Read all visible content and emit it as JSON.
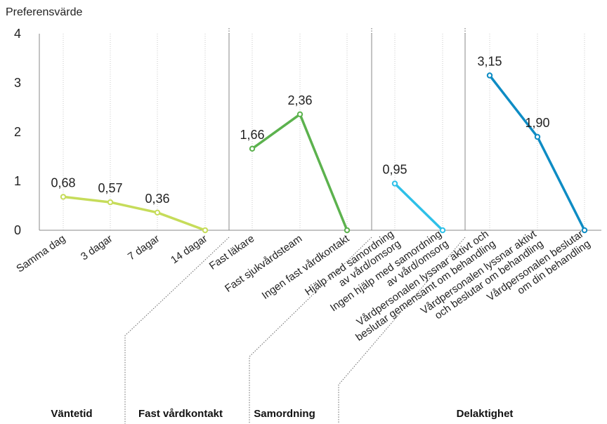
{
  "chart_data": {
    "type": "line",
    "ylabel": "Preferensvärde",
    "ylim": [
      0,
      4
    ],
    "yticks": [
      "0",
      "1",
      "2",
      "3",
      "4"
    ],
    "grid": true,
    "groups": [
      {
        "name": "Väntetid",
        "color": "#c6dc5a",
        "categories": [
          [
            "Samma dag"
          ],
          [
            "3 dagar"
          ],
          [
            "7 dagar"
          ],
          [
            "14 dagar"
          ]
        ],
        "values": [
          0.68,
          0.57,
          0.36,
          0
        ],
        "labels": [
          "0,68",
          "0,57",
          "0,36",
          ""
        ]
      },
      {
        "name": "Fast vårdkontakt",
        "color": "#5cb24e",
        "categories": [
          [
            "Fast läkare"
          ],
          [
            "Fast sjukvårdsteam"
          ],
          [
            "Ingen fast vårdkontakt"
          ]
        ],
        "values": [
          1.66,
          2.36,
          0
        ],
        "labels": [
          "1,66",
          "2,36",
          ""
        ]
      },
      {
        "name": "Samordning",
        "color": "#2ec0e8",
        "categories": [
          [
            "Hjälp med samordning",
            "av vård/omsorg"
          ],
          [
            "Ingen hjälp med samordning",
            "av vård/omsorg"
          ]
        ],
        "values": [
          0.95,
          0
        ],
        "labels": [
          "0,95",
          ""
        ]
      },
      {
        "name": "Delaktighet",
        "color": "#0e8cc4",
        "categories": [
          [
            "Vårdpersonalen lyssnar aktivt och",
            "beslutar gemensamt om behandling"
          ],
          [
            "Vårdpersonalen lyssnar aktivt",
            "och beslutar om behandling"
          ],
          [
            "Vårdpersonalen beslutar",
            "om din behandling"
          ]
        ],
        "values": [
          3.15,
          1.9,
          0
        ],
        "labels": [
          "3,15",
          "1,90",
          ""
        ]
      }
    ]
  }
}
